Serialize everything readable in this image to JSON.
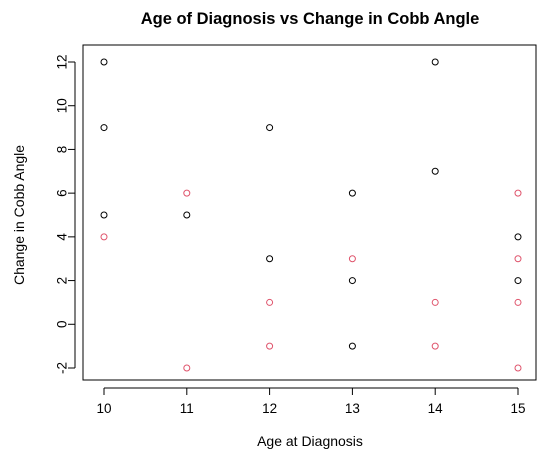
{
  "chart_data": {
    "type": "scatter",
    "title": "Age of Diagnosis vs Change in Cobb Angle",
    "xlabel": "Age at Diagnosis",
    "ylabel": "Change in Cobb Angle",
    "xlim": [
      10,
      15
    ],
    "ylim": [
      -2,
      12
    ],
    "xticks": [
      "10",
      "11",
      "12",
      "13",
      "14",
      "15"
    ],
    "yticks": [
      "-2",
      "0",
      "2",
      "4",
      "6",
      "8",
      "10",
      "12"
    ],
    "grid": false,
    "legend": "none",
    "marker": "open-circle",
    "series": [
      {
        "color": "#000000",
        "points": [
          {
            "x": 10,
            "y": 12
          },
          {
            "x": 10,
            "y": 9
          },
          {
            "x": 10,
            "y": 5
          },
          {
            "x": 11,
            "y": 5
          },
          {
            "x": 12,
            "y": 9
          },
          {
            "x": 12,
            "y": 3
          },
          {
            "x": 13,
            "y": 6
          },
          {
            "x": 13,
            "y": 2
          },
          {
            "x": 13,
            "y": -1
          },
          {
            "x": 14,
            "y": 12
          },
          {
            "x": 14,
            "y": 7
          },
          {
            "x": 15,
            "y": 4
          },
          {
            "x": 15,
            "y": 2
          }
        ]
      },
      {
        "color": "#DF536B",
        "points": [
          {
            "x": 10,
            "y": 4
          },
          {
            "x": 11,
            "y": 6
          },
          {
            "x": 11,
            "y": -2
          },
          {
            "x": 12,
            "y": 1
          },
          {
            "x": 12,
            "y": -1
          },
          {
            "x": 13,
            "y": 3
          },
          {
            "x": 14,
            "y": 1
          },
          {
            "x": 14,
            "y": -1
          },
          {
            "x": 15,
            "y": 6
          },
          {
            "x": 15,
            "y": 3
          },
          {
            "x": 15,
            "y": 1
          },
          {
            "x": 15,
            "y": -2
          }
        ]
      }
    ]
  }
}
